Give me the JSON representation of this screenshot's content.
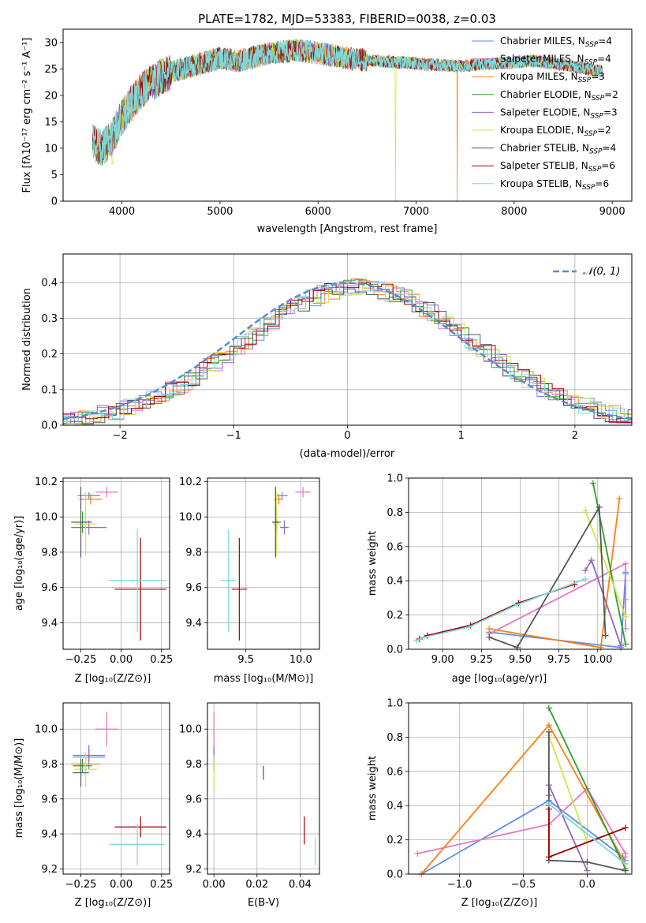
{
  "colors": {
    "chabrier_miles": "#5b8def",
    "salpeter_miles": "#e377c2",
    "kroupa_miles": "#ff7f0e",
    "chabrier_elodie": "#2ca02c",
    "salpeter_elodie": "#9467bd",
    "kroupa_elodie": "#d4e34a",
    "chabrier_stelib": "#555555",
    "salpeter_stelib": "#a00000",
    "kroupa_stelib": "#7fd8d8",
    "normal": "#5b8bd0",
    "grid": "#b0b0b0"
  },
  "chart_data": [
    {
      "id": "spectrum",
      "type": "line",
      "title": "PLATE=1782, MJD=53383, FIBERID=0038, z=0.03",
      "xlabel": "wavelength [Angstrom, rest frame]",
      "ylabel": "Flux [fλ10⁻¹⁷ erg cm⁻² s⁻¹ A⁻¹]",
      "xlim": [
        3400,
        9200
      ],
      "ylim": [
        0,
        32.5
      ],
      "xticks": [
        4000,
        5000,
        6000,
        7000,
        8000,
        9000
      ],
      "yticks": [
        0,
        5,
        10,
        15,
        20,
        25,
        30
      ],
      "grid": false,
      "legend_position": "top-right",
      "x_range_spectrum": [
        3700,
        8900
      ],
      "envelope_x": [
        3700,
        3800,
        3900,
        4000,
        4200,
        4400,
        4600,
        4800,
        5000,
        5200,
        5500,
        5800,
        6000,
        6300,
        6600,
        7000,
        7400,
        7800,
        8200,
        8600,
        8900
      ],
      "envelope_y": [
        11,
        10,
        12,
        16,
        21,
        23.5,
        25,
        26,
        27,
        26.5,
        28,
        28.5,
        28,
        27,
        26.5,
        26,
        25.5,
        26,
        26.5,
        25.5,
        24.5
      ],
      "series": [
        {
          "name": "Chabrier MILES, N_SSP=4",
          "label_main": "Chabrier MILES, N",
          "label_sub": "SSP",
          "label_tail": "=4",
          "color": "#5b8def"
        },
        {
          "name": "Salpeter MILES, N_SSP=4",
          "label_main": "Salpeter MILES, N",
          "label_sub": "SSP",
          "label_tail": "=4",
          "color": "#e377c2"
        },
        {
          "name": "Kroupa MILES, N_SSP=3",
          "label_main": "Kroupa MILES, N",
          "label_sub": "SSP",
          "label_tail": "=3",
          "color": "#ff7f0e"
        },
        {
          "name": "Chabrier ELODIE, N_SSP=2",
          "label_main": "Chabrier ELODIE, N",
          "label_sub": "SSP",
          "label_tail": "=2",
          "color": "#2ca02c"
        },
        {
          "name": "Salpeter ELODIE, N_SSP=3",
          "label_main": "Salpeter ELODIE, N",
          "label_sub": "SSP",
          "label_tail": "=3",
          "color": "#9467bd"
        },
        {
          "name": "Kroupa ELODIE, N_SSP=2",
          "label_main": "Kroupa ELODIE, N",
          "label_sub": "SSP",
          "label_tail": "=2",
          "color": "#d4e34a"
        },
        {
          "name": "Chabrier STELIB, N_SSP=4",
          "label_main": "Chabrier STELIB, N",
          "label_sub": "SSP",
          "label_tail": "=4",
          "color": "#555555"
        },
        {
          "name": "Salpeter STELIB, N_SSP=6",
          "label_main": "Salpeter STELIB, N",
          "label_sub": "SSP",
          "label_tail": "=6",
          "color": "#a00000"
        },
        {
          "name": "Kroupa STELIB, N_SSP=6",
          "label_main": "Kroupa STELIB, N",
          "label_sub": "SSP",
          "label_tail": "=6",
          "color": "#7fd8d8"
        }
      ],
      "dropouts": [
        [
          3900,
          7
        ],
        [
          6790,
          0
        ],
        [
          7420,
          0
        ]
      ]
    },
    {
      "id": "residuals",
      "type": "histogram",
      "xlabel": "(data-model)/error",
      "ylabel": "Normed distribution",
      "xlim": [
        -2.5,
        2.5
      ],
      "ylim": [
        0,
        0.48
      ],
      "xticks": [
        -2,
        -1,
        0,
        1,
        2
      ],
      "xtick_labels": [
        "−2",
        "−1",
        "0",
        "1",
        "2"
      ],
      "yticks": [
        0.0,
        0.1,
        0.2,
        0.3,
        0.4
      ],
      "grid": true,
      "legend_label": "𝒩(0, 1)",
      "legend_position": "top-right",
      "bin_width": 0.1
    },
    {
      "id": "age-vs-Z",
      "type": "errorbar",
      "xlabel": "Z [log₁₀(Z/Z⊙)]",
      "ylabel": "age  [log₁₀(age/yr)]",
      "xlim": [
        -0.36,
        0.3
      ],
      "ylim": [
        9.25,
        10.22
      ],
      "xticks": [
        -0.25,
        0.0,
        0.25
      ],
      "xtick_labels": [
        "−0.25",
        "0.00",
        "0.25"
      ],
      "yticks": [
        9.4,
        9.6,
        9.8,
        10.0,
        10.2
      ],
      "grid": true,
      "points": [
        {
          "c": "#5b8def",
          "x": -0.2,
          "y": 10.12,
          "xe": 0.07,
          "ye": 0.02
        },
        {
          "c": "#e377c2",
          "x": -0.09,
          "y": 10.14,
          "xe": 0.07,
          "ye": 0.03
        },
        {
          "c": "#ff7f0e",
          "x": -0.19,
          "y": 10.1,
          "xe": 0.07,
          "ye": 0.03
        },
        {
          "c": "#2ca02c",
          "x": -0.24,
          "y": 9.97,
          "xe": 0.06,
          "ye": 0.06
        },
        {
          "c": "#9467bd",
          "x": -0.2,
          "y": 9.94,
          "xe": 0.11,
          "ye": 0.04
        },
        {
          "c": "#d4e34a",
          "x": -0.22,
          "y": 9.96,
          "xe": 0.07,
          "ye": 0.18
        },
        {
          "c": "#555555",
          "x": -0.25,
          "y": 9.97,
          "xe": 0.06,
          "ye": 0.2
        },
        {
          "c": "#a00000",
          "x": 0.12,
          "y": 9.59,
          "xe": 0.16,
          "ye": 0.29
        },
        {
          "c": "#7fd8d8",
          "x": 0.1,
          "y": 9.64,
          "xe": 0.18,
          "ye": 0.29
        }
      ]
    },
    {
      "id": "age-vs-mass",
      "type": "errorbar",
      "xlabel": "mass [log₁₀(M/M⊙)]",
      "ylabel": "",
      "xlim": [
        9.15,
        10.17
      ],
      "ylim": [
        9.25,
        10.22
      ],
      "xticks": [
        9.5,
        10.0
      ],
      "xtick_labels": [
        "9.5",
        "10.0"
      ],
      "yticks": [
        9.4,
        9.6,
        9.8,
        10.0,
        10.2
      ],
      "grid": true,
      "points": [
        {
          "c": "#5b8def",
          "x": 9.83,
          "y": 10.12,
          "xe": 0.05,
          "ye": 0.02
        },
        {
          "c": "#e377c2",
          "x": 10.02,
          "y": 10.14,
          "xe": 0.07,
          "ye": 0.03
        },
        {
          "c": "#ff7f0e",
          "x": 9.8,
          "y": 10.1,
          "xe": 0.04,
          "ye": 0.03
        },
        {
          "c": "#2ca02c",
          "x": 9.78,
          "y": 9.97,
          "xe": 0.04,
          "ye": 0.06
        },
        {
          "c": "#9467bd",
          "x": 9.85,
          "y": 9.94,
          "xe": 0.04,
          "ye": 0.04
        },
        {
          "c": "#d4e34a",
          "x": 9.78,
          "y": 9.96,
          "xe": 0.03,
          "ye": 0.18
        },
        {
          "c": "#555555",
          "x": 9.77,
          "y": 9.97,
          "xe": 0.03,
          "ye": 0.2
        },
        {
          "c": "#a00000",
          "x": 9.44,
          "y": 9.59,
          "xe": 0.07,
          "ye": 0.29
        },
        {
          "c": "#7fd8d8",
          "x": 9.34,
          "y": 9.64,
          "xe": 0.07,
          "ye": 0.29
        }
      ]
    },
    {
      "id": "weight-vs-age",
      "type": "line",
      "xlabel": "age  [log₁₀(age/yr)]",
      "ylabel": "mass weight",
      "xlim": [
        8.78,
        10.22
      ],
      "ylim": [
        0,
        1
      ],
      "xticks": [
        9.0,
        9.25,
        9.5,
        9.75,
        10.0
      ],
      "xtick_labels": [
        "9.00",
        "9.25",
        "9.50",
        "9.75",
        "10.00"
      ],
      "yticks": [
        0.0,
        0.2,
        0.4,
        0.6,
        0.8,
        1.0
      ],
      "grid": true,
      "series": [
        {
          "c": "#5b8def",
          "x": [
            9.3,
            10.15,
            10.18,
            10.18
          ],
          "y": [
            0.1,
            0.01,
            0.44,
            0.45
          ]
        },
        {
          "c": "#e377c2",
          "x": [
            9.3,
            10.18,
            10.18,
            10.18
          ],
          "y": [
            0.09,
            0.5,
            0.29,
            0.12
          ]
        },
        {
          "c": "#ff7f0e",
          "x": [
            9.3,
            10.02,
            10.14
          ],
          "y": [
            0.12,
            0.01,
            0.88
          ]
        },
        {
          "c": "#2ca02c",
          "x": [
            9.97,
            10.18
          ],
          "y": [
            0.97,
            0.03
          ]
        },
        {
          "c": "#9467bd",
          "x": [
            9.92,
            9.96,
            10.15
          ],
          "y": [
            0.46,
            0.52,
            0.02
          ]
        },
        {
          "c": "#d4e34a",
          "x": [
            9.92,
            10.18
          ],
          "y": [
            0.81,
            0.19
          ]
        },
        {
          "c": "#555555",
          "x": [
            9.3,
            9.48,
            10.01,
            10.05
          ],
          "y": [
            0.07,
            0.01,
            0.83,
            0.08
          ]
        },
        {
          "c": "#a00000",
          "x": [
            8.85,
            8.9,
            9.18,
            9.49,
            9.85
          ],
          "y": [
            0.06,
            0.08,
            0.14,
            0.27,
            0.38
          ]
        },
        {
          "c": "#7fd8d8",
          "x": [
            8.83,
            8.88,
            9.17,
            9.48,
            9.92
          ],
          "y": [
            0.05,
            0.07,
            0.13,
            0.26,
            0.41
          ]
        }
      ]
    },
    {
      "id": "mass-vs-Z",
      "type": "errorbar",
      "xlabel": "Z [log₁₀(Z/Z⊙)]",
      "ylabel": "mass [log₁₀(M/M⊙)]",
      "xlim": [
        -0.36,
        0.3
      ],
      "ylim": [
        9.17,
        10.15
      ],
      "xticks": [
        -0.25,
        0.0,
        0.25
      ],
      "xtick_labels": [
        "−0.25",
        "0.00",
        "0.25"
      ],
      "yticks": [
        9.2,
        9.4,
        9.6,
        9.8,
        10.0
      ],
      "grid": true,
      "points": [
        {
          "c": "#5b8def",
          "x": -0.2,
          "y": 9.84,
          "xe": 0.1,
          "ye": 0.07
        },
        {
          "c": "#e377c2",
          "x": -0.09,
          "y": 10.0,
          "xe": 0.07,
          "ye": 0.1
        },
        {
          "c": "#ff7f0e",
          "x": -0.22,
          "y": 9.8,
          "xe": 0.09,
          "ye": 0.04
        },
        {
          "c": "#2ca02c",
          "x": -0.24,
          "y": 9.79,
          "xe": 0.06,
          "ye": 0.04
        },
        {
          "c": "#9467bd",
          "x": -0.2,
          "y": 9.85,
          "xe": 0.1,
          "ye": 0.04
        },
        {
          "c": "#d4e34a",
          "x": -0.22,
          "y": 9.77,
          "xe": 0.07,
          "ye": 0.1
        },
        {
          "c": "#555555",
          "x": -0.25,
          "y": 9.75,
          "xe": 0.05,
          "ye": 0.08
        },
        {
          "c": "#a00000",
          "x": 0.12,
          "y": 9.44,
          "xe": 0.16,
          "ye": 0.06
        },
        {
          "c": "#7fd8d8",
          "x": 0.1,
          "y": 9.34,
          "xe": 0.17,
          "ye": 0.12
        }
      ]
    },
    {
      "id": "mass-vs-ebv",
      "type": "errorbar",
      "xlabel": "E(B-V)",
      "ylabel": "",
      "xlim": [
        -0.003,
        0.049
      ],
      "ylim": [
        9.17,
        10.15
      ],
      "xticks": [
        0.0,
        0.02,
        0.04
      ],
      "xtick_labels": [
        "0.00",
        "0.02",
        "0.04"
      ],
      "yticks": [
        9.2,
        9.4,
        9.6,
        9.8,
        10.0
      ],
      "grid": true,
      "points": [
        {
          "c": "#5b8def",
          "x": 0.0,
          "y": 9.85,
          "xe": 0,
          "ye": 0.06
        },
        {
          "c": "#e377c2",
          "x": 0.0,
          "y": 10.0,
          "xe": 0,
          "ye": 0.1
        },
        {
          "c": "#ff7f0e",
          "x": 0.0,
          "y": 9.8,
          "xe": 0,
          "ye": 0.04
        },
        {
          "c": "#2ca02c",
          "x": 0.0,
          "y": 9.79,
          "xe": 0,
          "ye": 0.04
        },
        {
          "c": "#9467bd",
          "x": 0.0,
          "y": 9.86,
          "xe": 0,
          "ye": 0.04
        },
        {
          "c": "#d4e34a",
          "x": 0.0,
          "y": 9.75,
          "xe": 0,
          "ye": 0.1
        },
        {
          "c": "#555555",
          "x": 0.023,
          "y": 9.75,
          "xe": 0,
          "ye": 0.04
        },
        {
          "c": "#a00000",
          "x": 0.042,
          "y": 9.42,
          "xe": 0,
          "ye": 0.08
        },
        {
          "c": "#7fd8d8",
          "x": 0.047,
          "y": 9.3,
          "xe": 0,
          "ye": 0.08
        }
      ]
    },
    {
      "id": "weight-vs-Z",
      "type": "line",
      "xlabel": "Z [log₁₀(Z/Z⊙)]",
      "ylabel": "mass weight",
      "xlim": [
        -1.4,
        0.35
      ],
      "ylim": [
        0,
        1
      ],
      "xticks": [
        -1.0,
        -0.5,
        0.0
      ],
      "xtick_labels": [
        "−1.0",
        "−0.5",
        "0.0"
      ],
      "yticks": [
        0.0,
        0.2,
        0.4,
        0.6,
        0.8,
        1.0
      ],
      "grid": true,
      "series": [
        {
          "c": "#5b8def",
          "x": [
            -1.3,
            -0.3,
            0.28,
            0.3
          ],
          "y": [
            0.0,
            0.43,
            0.1,
            0.08
          ]
        },
        {
          "c": "#e377c2",
          "x": [
            -1.33,
            -0.3,
            0.0,
            0.3,
            0.3
          ],
          "y": [
            0.12,
            0.29,
            0.5,
            0.12,
            0.1
          ]
        },
        {
          "c": "#ff7f0e",
          "x": [
            -1.3,
            -0.3,
            0.3
          ],
          "y": [
            0.0,
            0.87,
            0.06
          ]
        },
        {
          "c": "#2ca02c",
          "x": [
            -0.3,
            0.3
          ],
          "y": [
            0.97,
            0.03
          ]
        },
        {
          "c": "#9467bd",
          "x": [
            -0.3,
            -0.3,
            0.0
          ],
          "y": [
            0.46,
            0.52,
            0.02
          ]
        },
        {
          "c": "#d4e34a",
          "x": [
            -0.3,
            0.0
          ],
          "y": [
            0.81,
            0.19
          ]
        },
        {
          "c": "#555555",
          "x": [
            -0.3,
            -0.3,
            -0.3,
            0.0,
            0.3
          ],
          "y": [
            0.83,
            0.4,
            0.08,
            0.07,
            0.02
          ]
        },
        {
          "c": "#a00000",
          "x": [
            -0.3,
            -0.3,
            0.3
          ],
          "y": [
            0.38,
            0.1,
            0.27
          ]
        },
        {
          "c": "#7fd8d8",
          "x": [
            -0.3,
            0.3
          ],
          "y": [
            0.41,
            0.06
          ]
        }
      ]
    }
  ]
}
